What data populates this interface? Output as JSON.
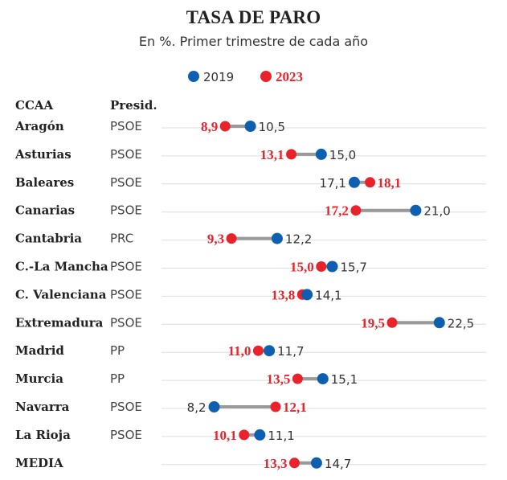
{
  "chart_data": {
    "type": "dumbbell",
    "title": "TASA DE PARO",
    "subtitle": "En %. Primer trimestre de cada año",
    "col_headers": {
      "region": "CCAA",
      "president": "Presid."
    },
    "series": [
      {
        "name": "2019",
        "color": "#0f5fb0",
        "key": "v2019"
      },
      {
        "name": "2023",
        "color": "#e8232b",
        "key": "v2023"
      }
    ],
    "xlim": [
      5,
      25
    ],
    "rows": [
      {
        "region": "Aragón",
        "president": "PSOE",
        "v2019": 10.5,
        "v2023": 8.9,
        "l2019": "10,5",
        "l2023": "8,9"
      },
      {
        "region": "Asturias",
        "president": "PSOE",
        "v2019": 15.0,
        "v2023": 13.1,
        "l2019": "15,0",
        "l2023": "13,1"
      },
      {
        "region": "Baleares",
        "president": "PSOE",
        "v2019": 17.1,
        "v2023": 18.1,
        "l2019": "17,1",
        "l2023": "18,1"
      },
      {
        "region": "Canarias",
        "president": "PSOE",
        "v2019": 21.0,
        "v2023": 17.2,
        "l2019": "21,0",
        "l2023": "17,2"
      },
      {
        "region": "Cantabria",
        "president": "PRC",
        "v2019": 12.2,
        "v2023": 9.3,
        "l2019": "12,2",
        "l2023": "9,3"
      },
      {
        "region": "C.-La Mancha",
        "president": "PSOE",
        "v2019": 15.7,
        "v2023": 15.0,
        "l2019": "15,7",
        "l2023": "15,0"
      },
      {
        "region": "C. Valenciana",
        "president": "PSOE",
        "v2019": 14.1,
        "v2023": 13.8,
        "l2019": "14,1",
        "l2023": "13,8"
      },
      {
        "region": "Extremadura",
        "president": "PSOE",
        "v2019": 22.5,
        "v2023": 19.5,
        "l2019": "22,5",
        "l2023": "19,5"
      },
      {
        "region": "Madrid",
        "president": "PP",
        "v2019": 11.7,
        "v2023": 11.0,
        "l2019": "11,7",
        "l2023": "11,0"
      },
      {
        "region": "Murcia",
        "president": "PP",
        "v2019": 15.1,
        "v2023": 13.5,
        "l2019": "15,1",
        "l2023": "13,5"
      },
      {
        "region": "Navarra",
        "president": "PSOE",
        "v2019": 8.2,
        "v2023": 12.1,
        "l2019": "8,2",
        "l2023": "12,1"
      },
      {
        "region": "La Rioja",
        "president": "PSOE",
        "v2019": 11.1,
        "v2023": 10.1,
        "l2019": "11,1",
        "l2023": "10,1"
      },
      {
        "region": "MEDIA",
        "president": "",
        "v2019": 14.7,
        "v2023": 13.3,
        "l2019": "14,7",
        "l2023": "13,3"
      }
    ]
  }
}
